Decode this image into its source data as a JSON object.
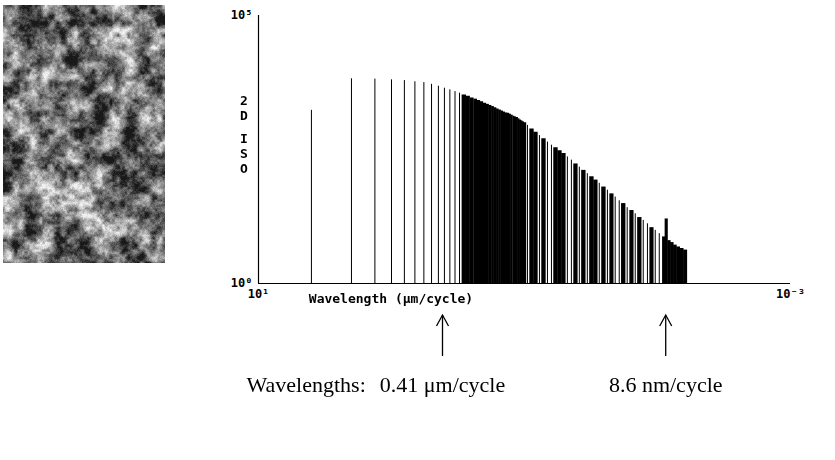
{
  "chart_data": {
    "type": "bar",
    "x_label": "Wavelength (μm/cycle)",
    "y_label": "2D ISO",
    "log": true,
    "color": "#000000",
    "xlim": [
      10,
      0.001
    ],
    "xticks": [
      {
        "value": 10,
        "label": "10¹"
      },
      {
        "value": 0.001,
        "label": "10⁻³"
      }
    ],
    "ylim": [
      1,
      100000
    ],
    "yticks": [
      {
        "value": 1,
        "label": "10⁰"
      },
      {
        "value": 100000,
        "label": "10⁵"
      }
    ],
    "x": [
      4,
      2,
      1.333,
      1,
      0.8,
      0.667,
      0.571,
      0.5,
      0.444,
      0.4,
      0.364,
      0.333,
      0.308,
      0.286,
      0.267,
      0.25,
      0.235,
      0.222,
      0.211,
      0.2,
      0.19,
      0.182,
      0.174,
      0.167,
      0.16,
      0.154,
      0.148,
      0.143,
      0.138,
      0.133,
      0.129,
      0.125,
      0.121,
      0.118,
      0.114,
      0.111,
      0.108,
      0.105,
      0.103,
      0.1,
      0.095,
      0.0886,
      0.0827,
      0.0772,
      0.072,
      0.0672,
      0.0627,
      0.0585,
      0.0546,
      0.051,
      0.0476,
      0.0444,
      0.0414,
      0.0387,
      0.0361,
      0.0337,
      0.0314,
      0.0293,
      0.0274,
      0.0255,
      0.0238,
      0.0222,
      0.0208,
      0.0194,
      0.0181,
      0.0169,
      0.0157,
      0.0147,
      0.0137,
      0.0128,
      0.0119,
      0.0111,
      0.0104,
      0.0097,
      0.009,
      0.0086,
      0.0082,
      0.0078,
      0.0074,
      0.007,
      0.0066,
      0.0062
    ],
    "values": [
      1700,
      6600,
      6500,
      6300,
      6100,
      5800,
      5600,
      5200,
      4800,
      4400,
      4100,
      3800,
      3550,
      3300,
      3100,
      2900,
      2750,
      2600,
      2450,
      2300,
      2200,
      2100,
      2000,
      1900,
      1800,
      1720,
      1650,
      1580,
      1520,
      1500,
      1440,
      1380,
      1320,
      1280,
      1250,
      1180,
      1120,
      1080,
      1040,
      1000,
      890,
      760,
      660,
      575,
      500,
      435,
      380,
      340,
      300,
      265,
      230,
      200,
      170,
      148,
      129,
      112,
      98,
      85,
      74,
      63,
      55,
      47,
      41,
      35,
      31,
      26,
      23,
      20,
      17,
      15,
      13,
      11,
      9.8,
      8.5,
      7.4,
      16,
      6.3,
      5.8,
      5.2,
      4.8,
      4.5,
      4.2
    ],
    "annotation_title": "Wavelengths:",
    "annotations": [
      {
        "value": 0.41,
        "label": "0.41 μm/cycle"
      },
      {
        "value": 0.0086,
        "label": "8.6 nm/cycle"
      }
    ]
  }
}
